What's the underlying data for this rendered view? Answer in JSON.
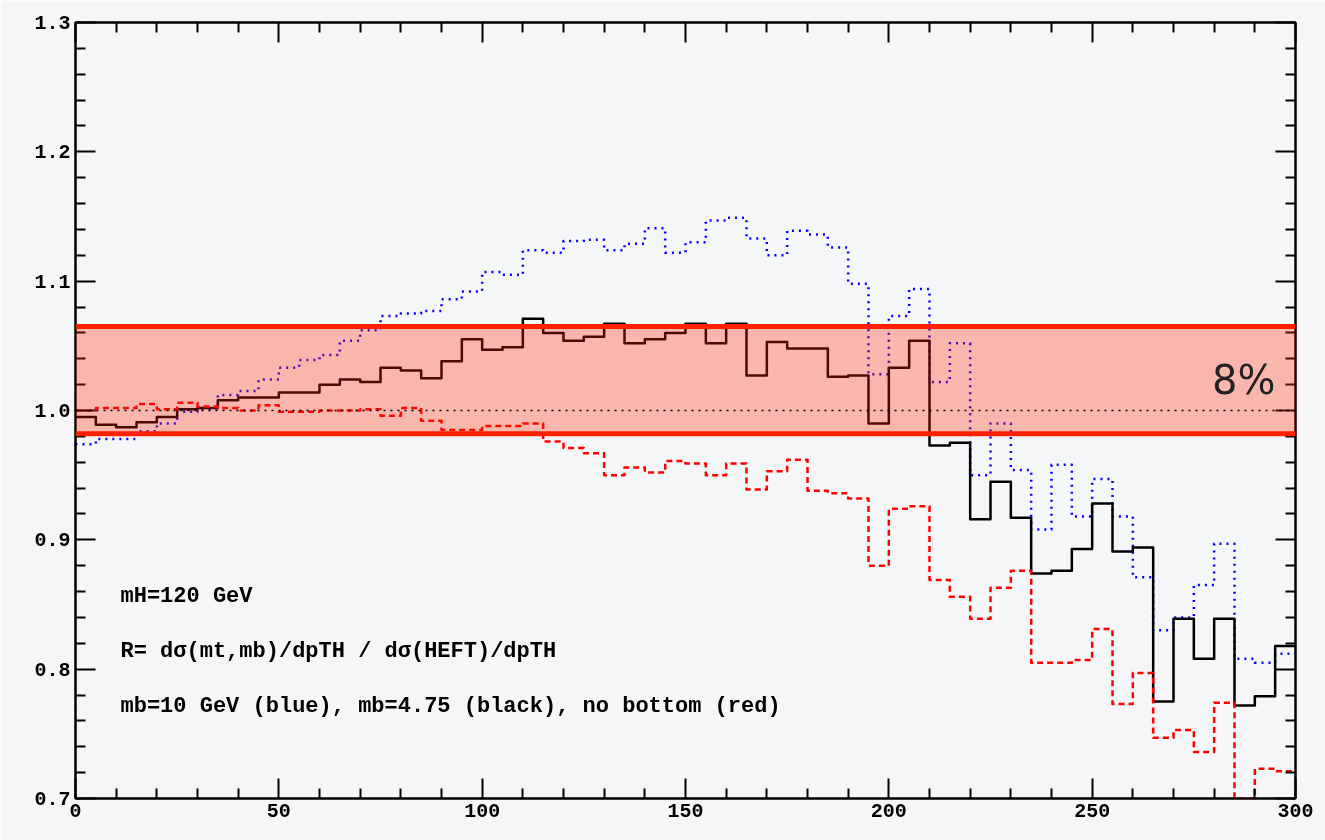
{
  "chart_data": {
    "type": "histogram",
    "bins": [
      0,
      5,
      10,
      15,
      20,
      25,
      30,
      35,
      40,
      45,
      50,
      55,
      60,
      65,
      70,
      75,
      80,
      85,
      90,
      95,
      100,
      105,
      110,
      115,
      120,
      125,
      130,
      135,
      140,
      145,
      150,
      155,
      160,
      165,
      170,
      175,
      180,
      185,
      190,
      195,
      200,
      205,
      210,
      215,
      220,
      225,
      230,
      235,
      240,
      245,
      250,
      255,
      260,
      265,
      270,
      275,
      280,
      285,
      290,
      295,
      300
    ],
    "series": [
      {
        "color": "#0000ff",
        "line_style": "dotted",
        "values": [
          0.974,
          0.978,
          0.978,
          0.984,
          0.99,
          0.999,
          1.001,
          1.012,
          1.015,
          1.024,
          1.033,
          1.039,
          1.043,
          1.054,
          1.062,
          1.073,
          1.075,
          1.077,
          1.086,
          1.092,
          1.107,
          1.105,
          1.124,
          1.122,
          1.131,
          1.132,
          1.124,
          1.129,
          1.141,
          1.122,
          1.13,
          1.147,
          1.149,
          1.133,
          1.12,
          1.139,
          1.136,
          1.126,
          1.098,
          1.028,
          1.073,
          1.094,
          1.022,
          1.052,
          0.95,
          0.99,
          0.954,
          0.908,
          0.958,
          0.918,
          0.947,
          0.918,
          0.871,
          0.83,
          0.84,
          0.865,
          0.897,
          0.808,
          0.805,
          0.812
        ]
      },
      {
        "color": "#000000",
        "line_style": "solid",
        "values": [
          0.995,
          0.989,
          0.987,
          0.991,
          0.995,
          1.001,
          1.002,
          1.008,
          1.01,
          1.01,
          1.014,
          1.014,
          1.02,
          1.024,
          1.022,
          1.033,
          1.031,
          1.025,
          1.038,
          1.055,
          1.047,
          1.049,
          1.071,
          1.06,
          1.054,
          1.057,
          1.067,
          1.052,
          1.055,
          1.06,
          1.067,
          1.052,
          1.067,
          1.027,
          1.053,
          1.048,
          1.048,
          1.026,
          1.027,
          0.99,
          1.033,
          1.054,
          0.973,
          0.975,
          0.916,
          0.945,
          0.917,
          0.874,
          0.876,
          0.893,
          0.928,
          0.891,
          0.894,
          0.775,
          0.839,
          0.808,
          0.839,
          0.772,
          0.779,
          0.818
        ]
      },
      {
        "color": "#ff0000",
        "line_style": "dashed",
        "values": [
          1.0,
          1.002,
          1.002,
          1.005,
          1.001,
          1.006,
          1.003,
          1.002,
          1.0,
          1.004,
          0.999,
          0.999,
          1.0,
          1.0,
          1.001,
          0.996,
          1.002,
          0.992,
          0.985,
          0.985,
          0.988,
          0.988,
          0.99,
          0.976,
          0.971,
          0.967,
          0.95,
          0.956,
          0.952,
          0.961,
          0.959,
          0.95,
          0.959,
          0.939,
          0.953,
          0.962,
          0.938,
          0.936,
          0.932,
          0.88,
          0.924,
          0.926,
          0.869,
          0.856,
          0.839,
          0.863,
          0.876,
          0.805,
          0.805,
          0.807,
          0.831,
          0.773,
          0.797,
          0.747,
          0.753,
          0.736,
          0.774,
          0.7,
          0.723,
          0.721
        ]
      }
    ],
    "xlim": [
      0,
      300
    ],
    "xticks": [
      0,
      {
        "value": 10,
        "label": null
      },
      {
        "value": 20,
        "label": null
      },
      {
        "value": 30,
        "label": null
      },
      {
        "value": 40,
        "label": null
      },
      50,
      {
        "value": 60,
        "label": null
      },
      {
        "value": 70,
        "label": null
      },
      {
        "value": 80,
        "label": null
      },
      {
        "value": 90,
        "label": null
      },
      100,
      {
        "value": 110,
        "label": null
      },
      {
        "value": 120,
        "label": null
      },
      {
        "value": 130,
        "label": null
      },
      {
        "value": 140,
        "label": null
      },
      150,
      {
        "value": 160,
        "label": null
      },
      {
        "value": 170,
        "label": null
      },
      {
        "value": 180,
        "label": null
      },
      {
        "value": 190,
        "label": null
      },
      200,
      {
        "value": 210,
        "label": null
      },
      {
        "value": 220,
        "label": null
      },
      {
        "value": 230,
        "label": null
      },
      {
        "value": 240,
        "label": null
      },
      250,
      {
        "value": 260,
        "label": null
      },
      {
        "value": 270,
        "label": null
      },
      {
        "value": 280,
        "label": null
      },
      {
        "value": 290,
        "label": null
      },
      300
    ],
    "ylim": [
      0.7,
      1.3
    ],
    "yticks": [
      0.7,
      {
        "value": 0.72,
        "label": null
      },
      {
        "value": 0.74,
        "label": null
      },
      {
        "value": 0.76,
        "label": null
      },
      {
        "value": 0.78,
        "label": null
      },
      0.8,
      {
        "value": 0.82,
        "label": null
      },
      {
        "value": 0.84,
        "label": null
      },
      {
        "value": 0.86,
        "label": null
      },
      {
        "value": 0.88,
        "label": null
      },
      0.9,
      {
        "value": 0.92,
        "label": null
      },
      {
        "value": 0.94,
        "label": null
      },
      {
        "value": 0.96,
        "label": null
      },
      {
        "value": 0.98,
        "label": null
      },
      {
        "value": 1.0,
        "label": "1.0"
      },
      {
        "value": 1.02,
        "label": null
      },
      {
        "value": 1.04,
        "label": null
      },
      {
        "value": 1.06,
        "label": null
      },
      {
        "value": 1.08,
        "label": null
      },
      1.1,
      {
        "value": 1.12,
        "label": null
      },
      {
        "value": 1.14,
        "label": null
      },
      {
        "value": 1.16,
        "label": null
      },
      {
        "value": 1.18,
        "label": null
      },
      1.2,
      {
        "value": 1.22,
        "label": null
      },
      {
        "value": 1.24,
        "label": null
      },
      {
        "value": 1.26,
        "label": null
      },
      {
        "value": 1.28,
        "label": null
      },
      1.3
    ],
    "ref_lines": [
      {
        "axis": "y",
        "value": 1.0,
        "color": "#000000",
        "line_style": "dotted"
      },
      {
        "axis": "y",
        "value": 0.982,
        "color": "#ff2200",
        "line_style": "solid"
      },
      {
        "axis": "y",
        "value": 1.065,
        "color": "#ff2200",
        "line_style": "solid"
      }
    ],
    "bands": [
      {
        "axis": "y",
        "from": 0.982,
        "to": 1.065,
        "label": "8%",
        "color": "#ff2200"
      }
    ],
    "annotations": [
      "mH=120 GeV",
      "R= dσ(mt,mb)/dpTH / dσ(HEFT)/dpTH",
      "mb=10 GeV (blue), mb=4.75 (black), no bottom (red)"
    ],
    "grid": false
  }
}
